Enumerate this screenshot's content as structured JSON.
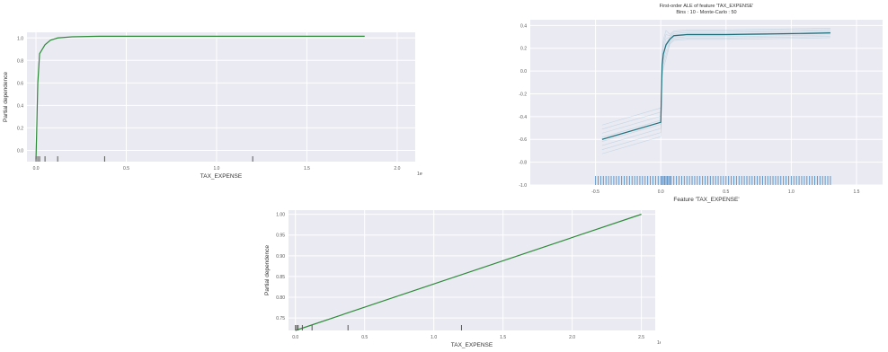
{
  "chart_data": [
    {
      "type": "line",
      "xlabel": "TAX_EXPENSE",
      "ylabel": "Partial dependence",
      "xlim": [
        -0.05,
        2.1
      ],
      "ylim": [
        -0.1,
        1.05
      ],
      "xticks": [
        0.0,
        0.5,
        1.0,
        1.5,
        2.0
      ],
      "xtick_labels": [
        "0.0",
        "0.5",
        "1.0",
        "1.5",
        "2.0"
      ],
      "yticks": [
        0.0,
        0.2,
        0.4,
        0.6,
        0.8,
        1.0
      ],
      "ytick_labels": [
        "0.0",
        "0.2",
        "0.4",
        "0.6",
        "0.8",
        "1.0"
      ],
      "corner_label": "1e6",
      "series": [
        {
          "color": "#2e8b3a",
          "x": [
            0.0,
            0.005,
            0.01,
            0.02,
            0.035,
            0.05,
            0.08,
            0.12,
            0.2,
            0.35,
            0.6,
            1.0,
            1.4,
            1.82
          ],
          "y": [
            -0.08,
            0.25,
            0.6,
            0.86,
            0.9,
            0.94,
            0.98,
            1.0,
            1.01,
            1.015,
            1.015,
            1.015,
            1.015,
            1.015
          ]
        }
      ],
      "rug": [
        0.0,
        0.01,
        0.02,
        0.05,
        0.12,
        0.38,
        1.2
      ]
    },
    {
      "type": "line",
      "title": "First-order ALE of feature 'TAX_EXPENSE'",
      "subtitle": "Bins : 10 - Monte-Carlo : 50",
      "xlabel": "Feature 'TAX_EXPENSE'",
      "ylabel": "",
      "xlim": [
        -1.0,
        1.7
      ],
      "ylim": [
        -1.0,
        0.45
      ],
      "xticks": [
        -0.5,
        0.0,
        0.5,
        1.0,
        1.5
      ],
      "xtick_labels": [
        "-0.5",
        "0.0",
        "0.5",
        "1.0",
        "1.5"
      ],
      "yticks": [
        -1.0,
        -0.8,
        -0.6,
        -0.4,
        -0.2,
        0.0,
        0.2,
        0.4
      ],
      "ytick_labels": [
        "-1.0",
        "-0.8",
        "-0.6",
        "-0.4",
        "-0.2",
        "0.0",
        "0.2",
        "0.4"
      ],
      "series": [
        {
          "color": "#1f6f7a",
          "x": [
            -0.45,
            0.0,
            0.005,
            0.01,
            0.02,
            0.04,
            0.07,
            0.1,
            0.2,
            0.5,
            0.8,
            1.1,
            1.3
          ],
          "y": [
            -0.6,
            -0.45,
            -0.2,
            0.05,
            0.15,
            0.23,
            0.28,
            0.31,
            0.32,
            0.32,
            0.325,
            0.33,
            0.335
          ]
        }
      ],
      "rug": [
        -0.5,
        -0.48,
        -0.46,
        -0.44,
        -0.42,
        -0.4,
        -0.38,
        -0.36,
        -0.34,
        -0.32,
        -0.3,
        -0.28,
        -0.26,
        -0.24,
        -0.22,
        -0.2,
        -0.18,
        -0.16,
        -0.14,
        -0.12,
        -0.1,
        -0.08,
        -0.06,
        -0.04,
        -0.02,
        0.0,
        0.01,
        0.02,
        0.03,
        0.04,
        0.05,
        0.06,
        0.07,
        0.08,
        0.1,
        0.12,
        0.14,
        0.16,
        0.18,
        0.2,
        0.22,
        0.24,
        0.26,
        0.28,
        0.3,
        0.32,
        0.34,
        0.36,
        0.38,
        0.4,
        0.42,
        0.44,
        0.46,
        0.48,
        0.5,
        0.52,
        0.54,
        0.56,
        0.58,
        0.6,
        0.62,
        0.64,
        0.66,
        0.68,
        0.7,
        0.72,
        0.74,
        0.76,
        0.78,
        0.8,
        0.82,
        0.84,
        0.86,
        0.88,
        0.9,
        0.92,
        0.94,
        0.96,
        0.98,
        1.0,
        1.02,
        1.04,
        1.06,
        1.08,
        1.1,
        1.12,
        1.14,
        1.16,
        1.18,
        1.2,
        1.22,
        1.24,
        1.26,
        1.28,
        1.3
      ]
    },
    {
      "type": "line",
      "xlabel": "TAX_EXPENSE",
      "ylabel": "Partial dependence",
      "xlim": [
        -0.05,
        2.6
      ],
      "ylim": [
        0.72,
        1.01
      ],
      "xticks": [
        0.0,
        0.5,
        1.0,
        1.5,
        2.0,
        2.5
      ],
      "xtick_labels": [
        "0.0",
        "0.5",
        "1.0",
        "1.5",
        "2.0",
        "2.5"
      ],
      "yticks": [
        0.75,
        0.8,
        0.85,
        0.9,
        0.95,
        1.0
      ],
      "ytick_labels": [
        "0.75",
        "0.80",
        "0.85",
        "0.90",
        "0.95",
        "1.00"
      ],
      "corner_label": "1e6",
      "series": [
        {
          "color": "#2e8b3a",
          "x": [
            0.0,
            2.5
          ],
          "y": [
            0.72,
            1.0
          ]
        }
      ],
      "rug": [
        0.0,
        0.01,
        0.02,
        0.05,
        0.12,
        0.38,
        1.2
      ]
    }
  ]
}
